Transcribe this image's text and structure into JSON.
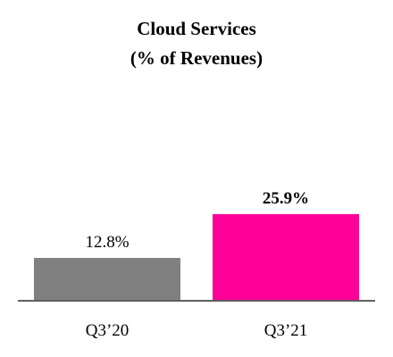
{
  "chart_data": {
    "type": "bar",
    "title_lines": [
      "Cloud Services",
      "(% of Revenues)"
    ],
    "categories": [
      "Q3’20",
      "Q3’21"
    ],
    "values": [
      12.8,
      25.9
    ],
    "value_labels": [
      "12.8%",
      "25.9%"
    ],
    "value_label_bold": [
      false,
      true
    ],
    "colors": [
      "#808080",
      "#FF0098"
    ],
    "axis_color": "#606060",
    "xlabel": "",
    "ylabel": "",
    "ylim": [
      0,
      35
    ],
    "grid": false,
    "legend": "none"
  }
}
